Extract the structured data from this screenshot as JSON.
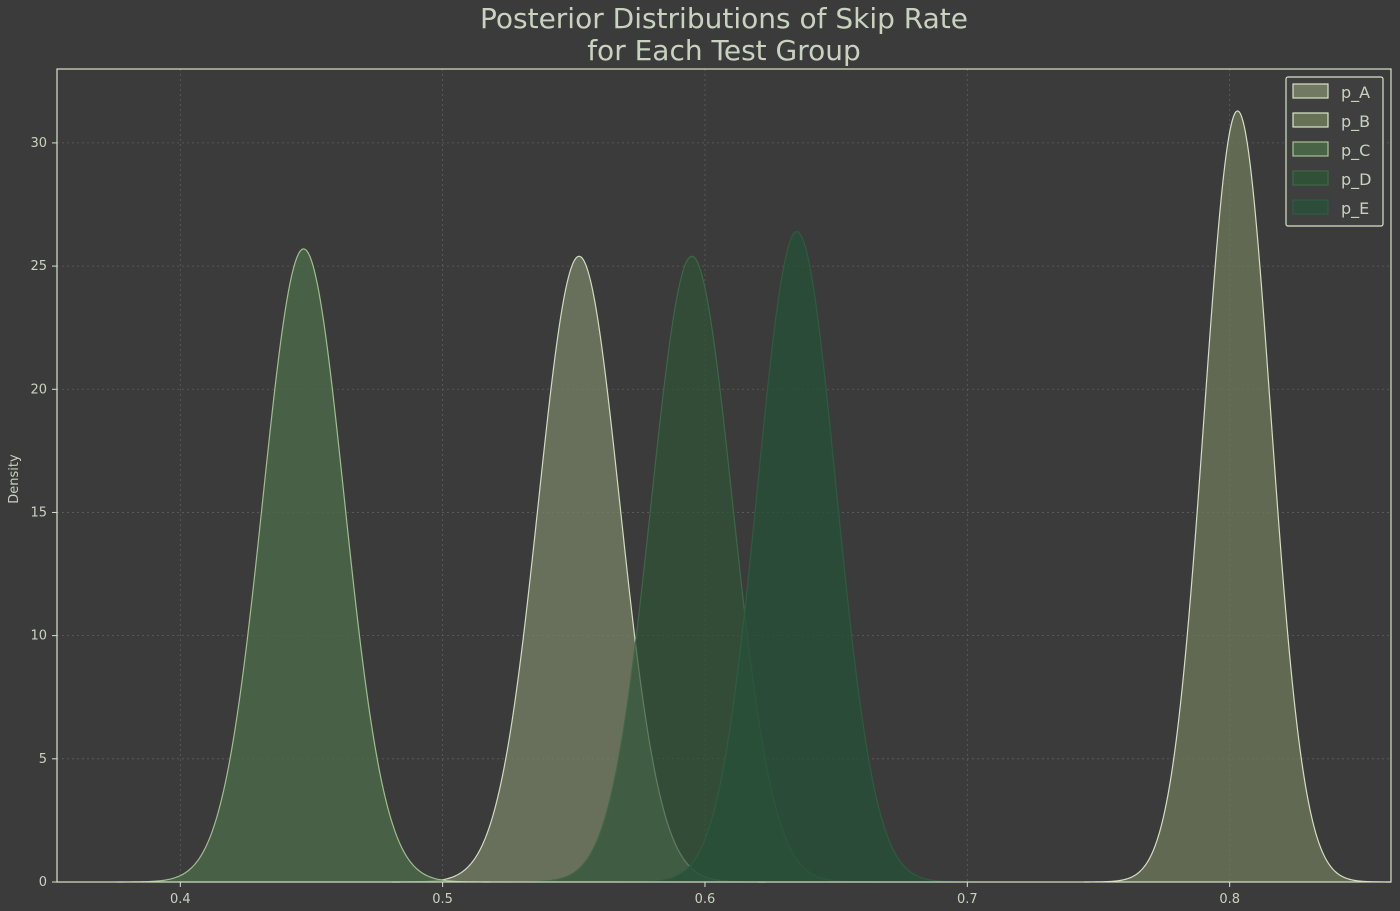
{
  "chart_data": {
    "type": "area",
    "title": "Posterior Distributions of Skip Rate",
    "subtitle": "for Each Test Group",
    "xlabel": "",
    "ylabel": "Density",
    "xlim": [
      0.353,
      0.8615
    ],
    "ylim": [
      0,
      33
    ],
    "xticks": [
      0.4,
      0.5,
      0.6,
      0.7,
      0.8
    ],
    "yticks": [
      0,
      5,
      10,
      15,
      20,
      25,
      30
    ],
    "grid": true,
    "legend_position": "top-right",
    "series": [
      {
        "name": "p_A",
        "mean": 0.552,
        "sd": 0.0155,
        "peak": 25.4,
        "fill": "#7a8468",
        "stroke": "#d8e3c8",
        "opacity": 0.72
      },
      {
        "name": "p_B",
        "mean": 0.803,
        "sd": 0.0127,
        "peak": 31.3,
        "fill": "#6f7a5a",
        "stroke": "#dce6cb",
        "opacity": 0.74
      },
      {
        "name": "p_C",
        "mean": 0.447,
        "sd": 0.0155,
        "peak": 25.7,
        "fill": "#4b6a48",
        "stroke": "#a7c395",
        "opacity": 0.78
      },
      {
        "name": "p_D",
        "mean": 0.595,
        "sd": 0.0155,
        "peak": 25.4,
        "fill": "#2f5437",
        "stroke": "#3d6848",
        "opacity": 0.7
      },
      {
        "name": "p_E",
        "mean": 0.635,
        "sd": 0.015,
        "peak": 26.4,
        "fill": "#28503a",
        "stroke": "#2f5c40",
        "opacity": 0.8
      }
    ]
  }
}
